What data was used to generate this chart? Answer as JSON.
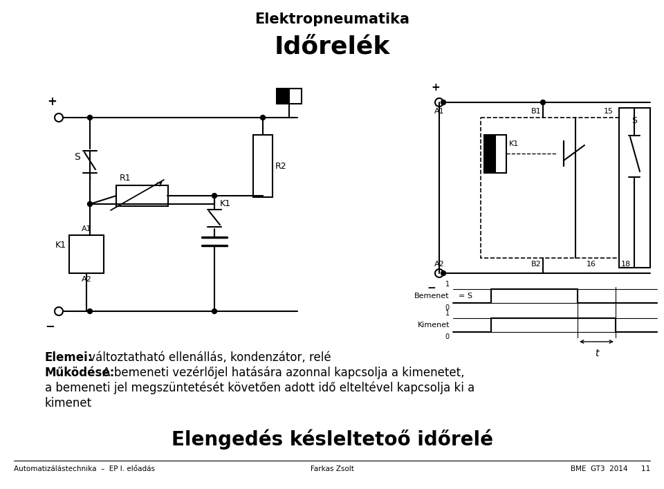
{
  "title": "Elektropneumatika",
  "subtitle": "Időrelék",
  "bg_color": "#ffffff",
  "text_color": "#000000",
  "elemei_bold": "Elemei:",
  "elemei_rest": " változtatható ellenállás, kondenzátor, relé",
  "mukodese_bold": "Működése:",
  "mukodese_rest": " A bemeneti vezérlőjel hatására azonnal kapcsolja a kimenetet,",
  "line3": "a bemeneti jel megszüntetését követően adott idő elteltével kapcsolja ki a",
  "line4": "kimenet",
  "bottom_title": "Elengedés késleltetoő időrelé",
  "footer_left": "Automatizálástechnika  –  EP I. előadás",
  "footer_center": "Farkas Zsolt",
  "footer_right": "BME  GT3  2014      11"
}
